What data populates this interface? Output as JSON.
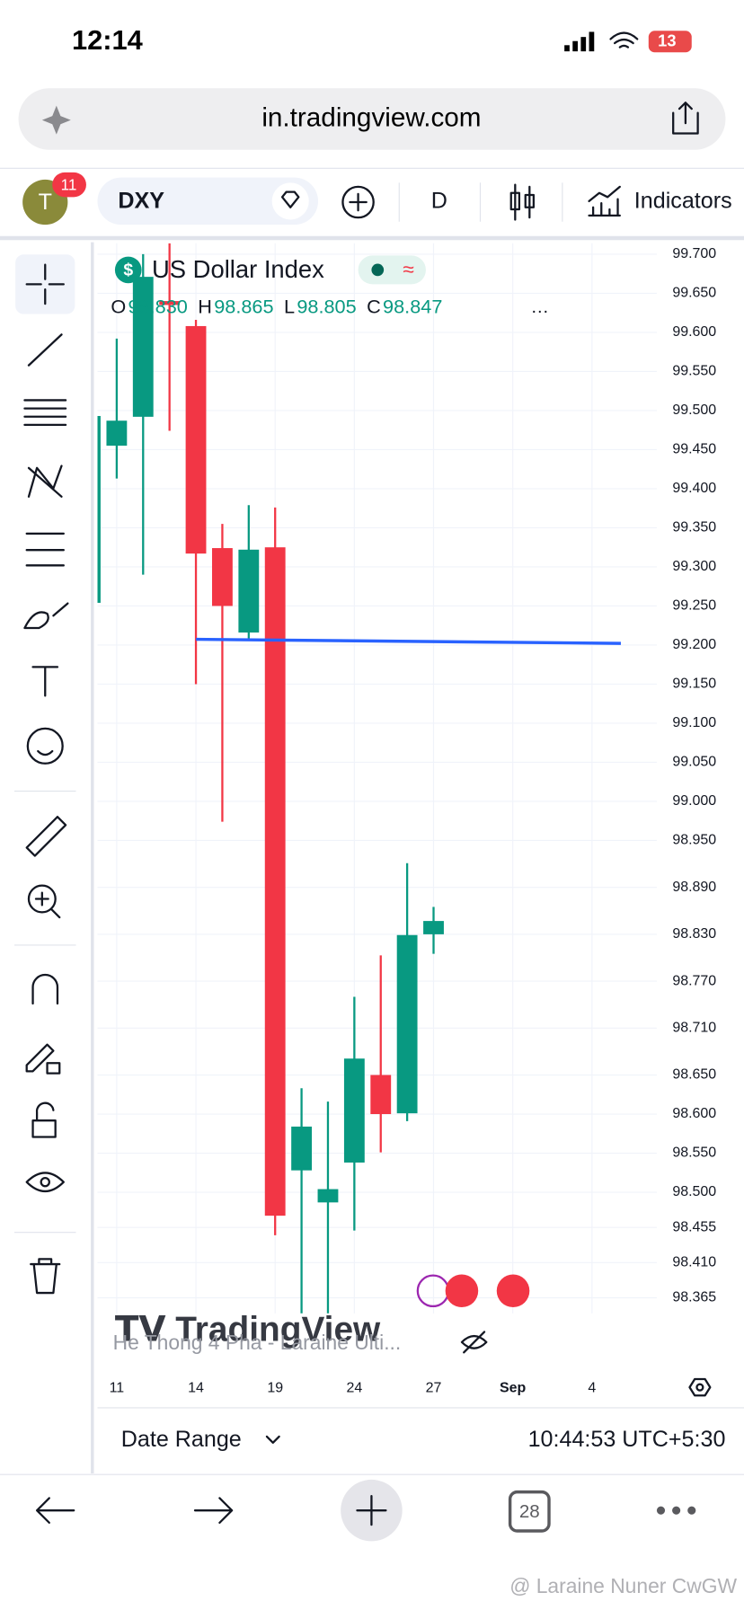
{
  "status_bar": {
    "time": "12:14",
    "battery": "13"
  },
  "browser": {
    "url": "in.tradingview.com",
    "tab_count": "28"
  },
  "toolbar": {
    "avatar": "T",
    "badge": "11",
    "symbol": "DXY",
    "interval": "D",
    "indicators": "Indicators"
  },
  "chart_footer": {
    "watermark": "TradingView",
    "script_name": "He Thong 4 Pha - Laraine Ulti...",
    "date_range": "Date Range",
    "clock": "10:44:53 UTC+5:30"
  },
  "overlay_watermark": "@ Laraine Nuner CwGW",
  "chart_data": {
    "type": "candlestick",
    "title": "US Dollar Index",
    "legend": [
      {
        "key": "O",
        "value": "98.830"
      },
      {
        "key": "H",
        "value": "98.865"
      },
      {
        "key": "L",
        "value": "98.805"
      },
      {
        "key": "C",
        "value": "98.847"
      }
    ],
    "categories": [
      null,
      "11",
      null,
      null,
      "14",
      null,
      null,
      "19",
      null,
      null,
      "24",
      null,
      null,
      "27",
      null,
      null,
      "Sep",
      null,
      null,
      "4"
    ],
    "open": [
      99.254,
      99.455,
      99.492,
      99.64,
      99.608,
      99.324,
      99.216,
      99.325,
      98.528,
      98.487,
      98.538,
      98.65,
      98.601,
      98.83,
      null,
      null,
      null,
      null,
      null,
      null
    ],
    "high": [
      99.493,
      99.592,
      99.7,
      99.714,
      99.616,
      99.355,
      99.379,
      99.376,
      98.633,
      98.616,
      98.75,
      98.803,
      98.921,
      98.865,
      null,
      null,
      null,
      null,
      null,
      null
    ],
    "low": [
      99.254,
      99.413,
      99.29,
      99.474,
      99.15,
      98.974,
      99.208,
      98.445,
      98.345,
      98.345,
      98.451,
      98.551,
      98.591,
      98.805,
      null,
      null,
      null,
      null,
      null,
      null
    ],
    "close": [
      99.493,
      99.487,
      99.671,
      99.635,
      99.317,
      99.25,
      99.322,
      98.47,
      98.584,
      98.504,
      98.671,
      98.6,
      98.829,
      98.847,
      null,
      null,
      null,
      null,
      null,
      null
    ],
    "up_color": "#089981",
    "down_color": "#f23645",
    "ylim": [
      98.345,
      99.714
    ],
    "yticks": [
      {
        "value": 99.7,
        "label": "99.700"
      },
      {
        "value": 99.65,
        "label": "99.650"
      },
      {
        "value": 99.6,
        "label": "99.600"
      },
      {
        "value": 99.55,
        "label": "99.550"
      },
      {
        "value": 99.5,
        "label": "99.500"
      },
      {
        "value": 99.45,
        "label": "99.450"
      },
      {
        "value": 99.4,
        "label": "99.400"
      },
      {
        "value": 99.35,
        "label": "99.350"
      },
      {
        "value": 99.3,
        "label": "99.300"
      },
      {
        "value": 99.25,
        "label": "99.250"
      },
      {
        "value": 99.2,
        "label": "99.200"
      },
      {
        "value": 99.15,
        "label": "99.150"
      },
      {
        "value": 99.1,
        "label": "99.100"
      },
      {
        "value": 99.05,
        "label": "99.050"
      },
      {
        "value": 99,
        "label": "99.000"
      },
      {
        "value": 98.95,
        "label": "98.950"
      },
      {
        "value": 98.89,
        "label": "98.890"
      },
      {
        "value": 98.83,
        "label": "98.830"
      },
      {
        "value": 98.77,
        "label": "98.770"
      },
      {
        "value": 98.71,
        "label": "98.710"
      },
      {
        "value": 98.65,
        "label": "98.650"
      },
      {
        "value": 98.6,
        "label": "98.600"
      },
      {
        "value": 98.55,
        "label": "98.550"
      },
      {
        "value": 98.5,
        "label": "98.500"
      },
      {
        "value": 98.455,
        "label": "98.455"
      },
      {
        "value": 98.41,
        "label": "98.410"
      },
      {
        "value": 98.365,
        "label": "98.365"
      }
    ],
    "grid": true
  }
}
